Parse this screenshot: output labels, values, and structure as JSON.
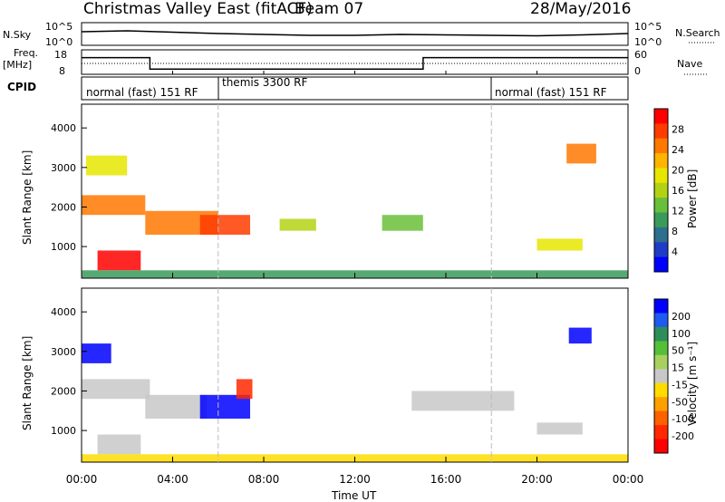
{
  "header": {
    "station": "Christmas Valley East (fitACF)",
    "beam": "Beam 07",
    "date": "28/May/2016"
  },
  "panels": {
    "nsky_label": "N.Sky",
    "nsky_ticks": [
      "10^5",
      "10^0"
    ],
    "nsearch_ticks_right": [
      "10^5",
      "10^0"
    ],
    "nsearch_label": "N.Search",
    "freq_label_line1": "Freq.",
    "freq_label_line2": "[MHz]",
    "freq_ticks": [
      "18",
      "8"
    ],
    "nave_ticks": [
      "60",
      "0"
    ],
    "nave_label": "Nave",
    "cpid_label": "CPID",
    "cpid_segments": [
      "normal (fast) 151 RF",
      "themis 3300 RF",
      "normal (fast) 151 RF"
    ]
  },
  "colors": {
    "power_scale": [
      "#0000ff",
      "#1e3cc8",
      "#2e6e8e",
      "#3a9a5a",
      "#6abf3a",
      "#b4d214",
      "#e6e600",
      "#ffb400",
      "#ff7800",
      "#ff3c00",
      "#ff0000"
    ],
    "velocity_scale": [
      "#0000ff",
      "#1e5af0",
      "#2e8e5a",
      "#55bf3a",
      "#a8d060",
      "#c8c8c8",
      "#ffdc00",
      "#ffa000",
      "#ff6000",
      "#ff2800",
      "#ff0000"
    ]
  },
  "chart_data": [
    {
      "type": "heatmap",
      "name": "power",
      "xlabel": "Time UT",
      "ylabel": "Slant Range [km]",
      "x_ticks": [
        "00:00",
        "04:00",
        "08:00",
        "12:00",
        "16:00",
        "20:00",
        "00:00"
      ],
      "y_ticks": [
        "1000",
        "2000",
        "3000",
        "4000"
      ],
      "ylim": [
        200,
        4600
      ],
      "colorbar_label": "Power [dB]",
      "colorbar_ticks": [
        "4",
        "8",
        "12",
        "16",
        "20",
        "24",
        "28"
      ],
      "clim": [
        0,
        30
      ],
      "regions": [
        {
          "t": [
            0.2,
            2.0
          ],
          "r": [
            2800,
            3300
          ],
          "v": 18
        },
        {
          "t": [
            0.0,
            2.8
          ],
          "r": [
            1800,
            2300
          ],
          "v": 22
        },
        {
          "t": [
            0.7,
            2.6
          ],
          "r": [
            400,
            900
          ],
          "v": 28
        },
        {
          "t": [
            2.8,
            6.0
          ],
          "r": [
            1300,
            1900
          ],
          "v": 24
        },
        {
          "t": [
            5.2,
            7.4
          ],
          "r": [
            1300,
            1800
          ],
          "v": 27
        },
        {
          "t": [
            8.7,
            10.3
          ],
          "r": [
            1400,
            1700
          ],
          "v": 16
        },
        {
          "t": [
            13.2,
            15.0
          ],
          "r": [
            1400,
            1800
          ],
          "v": 12
        },
        {
          "t": [
            20.0,
            22.0
          ],
          "r": [
            900,
            1200
          ],
          "v": 17
        },
        {
          "t": [
            21.3,
            22.6
          ],
          "r": [
            3100,
            3600
          ],
          "v": 22
        },
        {
          "t": [
            0.0,
            24.0
          ],
          "r": [
            200,
            400
          ],
          "v": 10
        }
      ]
    },
    {
      "type": "heatmap",
      "name": "velocity",
      "xlabel": "Time UT",
      "ylabel": "Slant Range [km]",
      "x_ticks": [
        "00:00",
        "04:00",
        "08:00",
        "12:00",
        "16:00",
        "20:00",
        "00:00"
      ],
      "y_ticks": [
        "1000",
        "2000",
        "3000",
        "4000"
      ],
      "ylim": [
        200,
        4600
      ],
      "colorbar_label": "Velocity [m s⁻¹]",
      "colorbar_ticks": [
        "200",
        "100",
        "50",
        "15",
        "-15",
        "-50",
        "-100",
        "-200"
      ],
      "clim": [
        -250,
        250
      ],
      "regions": [
        {
          "t": [
            0.0,
            1.3
          ],
          "r": [
            2700,
            3200
          ],
          "v": 220
        },
        {
          "t": [
            0.0,
            3.0
          ],
          "r": [
            1800,
            2300
          ],
          "v": 0
        },
        {
          "t": [
            0.7,
            2.6
          ],
          "r": [
            400,
            900
          ],
          "v": 0
        },
        {
          "t": [
            2.8,
            5.5
          ],
          "r": [
            1300,
            1900
          ],
          "v": -10
        },
        {
          "t": [
            5.2,
            7.4
          ],
          "r": [
            1300,
            1900
          ],
          "v": 230
        },
        {
          "t": [
            6.8,
            7.5
          ],
          "r": [
            1800,
            2300
          ],
          "v": -200
        },
        {
          "t": [
            14.5,
            19.0
          ],
          "r": [
            1500,
            2000
          ],
          "v": 0
        },
        {
          "t": [
            20.0,
            22.0
          ],
          "r": [
            900,
            1200
          ],
          "v": 0
        },
        {
          "t": [
            21.4,
            22.4
          ],
          "r": [
            3200,
            3600
          ],
          "v": 230
        },
        {
          "t": [
            0.0,
            24.0
          ],
          "r": [
            200,
            400
          ],
          "v": -60
        }
      ]
    }
  ],
  "nsky_series": {
    "name": "N.Sky",
    "t": [
      0,
      2,
      4,
      6,
      8,
      10,
      12,
      14,
      16,
      18,
      20,
      22,
      24
    ],
    "log_values": [
      3.0,
      3.2,
      2.9,
      2.6,
      2.4,
      2.2,
      2.2,
      2.4,
      2.3,
      2.2,
      2.1,
      2.3,
      2.6
    ]
  },
  "freq_series": {
    "t": [
      0,
      3.0,
      3.0,
      15.0,
      15.0,
      24
    ],
    "mhz": [
      16.0,
      16.0,
      9.0,
      9.0,
      16.0,
      16.0
    ]
  },
  "nave_series": {
    "t": [
      0,
      24
    ],
    "value": [
      25,
      25
    ]
  }
}
